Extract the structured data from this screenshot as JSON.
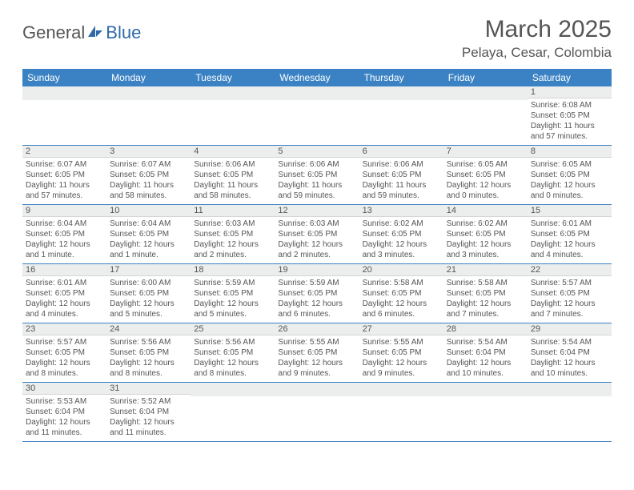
{
  "header": {
    "logo_text_1": "General",
    "logo_text_2": "Blue",
    "title": "March 2025",
    "subtitle": "Pelaya, Cesar, Colombia"
  },
  "colors": {
    "header_bg": "#3b82c4",
    "header_text": "#ffffff",
    "daynum_bg": "#eceded",
    "text": "#555555",
    "logo_triangle": "#2f6aa8"
  },
  "weekdays": [
    "Sunday",
    "Monday",
    "Tuesday",
    "Wednesday",
    "Thursday",
    "Friday",
    "Saturday"
  ],
  "weeks": [
    [
      null,
      null,
      null,
      null,
      null,
      null,
      {
        "num": "1",
        "sunrise": "Sunrise: 6:08 AM",
        "sunset": "Sunset: 6:05 PM",
        "daylight": "Daylight: 11 hours and 57 minutes."
      }
    ],
    [
      {
        "num": "2",
        "sunrise": "Sunrise: 6:07 AM",
        "sunset": "Sunset: 6:05 PM",
        "daylight": "Daylight: 11 hours and 57 minutes."
      },
      {
        "num": "3",
        "sunrise": "Sunrise: 6:07 AM",
        "sunset": "Sunset: 6:05 PM",
        "daylight": "Daylight: 11 hours and 58 minutes."
      },
      {
        "num": "4",
        "sunrise": "Sunrise: 6:06 AM",
        "sunset": "Sunset: 6:05 PM",
        "daylight": "Daylight: 11 hours and 58 minutes."
      },
      {
        "num": "5",
        "sunrise": "Sunrise: 6:06 AM",
        "sunset": "Sunset: 6:05 PM",
        "daylight": "Daylight: 11 hours and 59 minutes."
      },
      {
        "num": "6",
        "sunrise": "Sunrise: 6:06 AM",
        "sunset": "Sunset: 6:05 PM",
        "daylight": "Daylight: 11 hours and 59 minutes."
      },
      {
        "num": "7",
        "sunrise": "Sunrise: 6:05 AM",
        "sunset": "Sunset: 6:05 PM",
        "daylight": "Daylight: 12 hours and 0 minutes."
      },
      {
        "num": "8",
        "sunrise": "Sunrise: 6:05 AM",
        "sunset": "Sunset: 6:05 PM",
        "daylight": "Daylight: 12 hours and 0 minutes."
      }
    ],
    [
      {
        "num": "9",
        "sunrise": "Sunrise: 6:04 AM",
        "sunset": "Sunset: 6:05 PM",
        "daylight": "Daylight: 12 hours and 1 minute."
      },
      {
        "num": "10",
        "sunrise": "Sunrise: 6:04 AM",
        "sunset": "Sunset: 6:05 PM",
        "daylight": "Daylight: 12 hours and 1 minute."
      },
      {
        "num": "11",
        "sunrise": "Sunrise: 6:03 AM",
        "sunset": "Sunset: 6:05 PM",
        "daylight": "Daylight: 12 hours and 2 minutes."
      },
      {
        "num": "12",
        "sunrise": "Sunrise: 6:03 AM",
        "sunset": "Sunset: 6:05 PM",
        "daylight": "Daylight: 12 hours and 2 minutes."
      },
      {
        "num": "13",
        "sunrise": "Sunrise: 6:02 AM",
        "sunset": "Sunset: 6:05 PM",
        "daylight": "Daylight: 12 hours and 3 minutes."
      },
      {
        "num": "14",
        "sunrise": "Sunrise: 6:02 AM",
        "sunset": "Sunset: 6:05 PM",
        "daylight": "Daylight: 12 hours and 3 minutes."
      },
      {
        "num": "15",
        "sunrise": "Sunrise: 6:01 AM",
        "sunset": "Sunset: 6:05 PM",
        "daylight": "Daylight: 12 hours and 4 minutes."
      }
    ],
    [
      {
        "num": "16",
        "sunrise": "Sunrise: 6:01 AM",
        "sunset": "Sunset: 6:05 PM",
        "daylight": "Daylight: 12 hours and 4 minutes."
      },
      {
        "num": "17",
        "sunrise": "Sunrise: 6:00 AM",
        "sunset": "Sunset: 6:05 PM",
        "daylight": "Daylight: 12 hours and 5 minutes."
      },
      {
        "num": "18",
        "sunrise": "Sunrise: 5:59 AM",
        "sunset": "Sunset: 6:05 PM",
        "daylight": "Daylight: 12 hours and 5 minutes."
      },
      {
        "num": "19",
        "sunrise": "Sunrise: 5:59 AM",
        "sunset": "Sunset: 6:05 PM",
        "daylight": "Daylight: 12 hours and 6 minutes."
      },
      {
        "num": "20",
        "sunrise": "Sunrise: 5:58 AM",
        "sunset": "Sunset: 6:05 PM",
        "daylight": "Daylight: 12 hours and 6 minutes."
      },
      {
        "num": "21",
        "sunrise": "Sunrise: 5:58 AM",
        "sunset": "Sunset: 6:05 PM",
        "daylight": "Daylight: 12 hours and 7 minutes."
      },
      {
        "num": "22",
        "sunrise": "Sunrise: 5:57 AM",
        "sunset": "Sunset: 6:05 PM",
        "daylight": "Daylight: 12 hours and 7 minutes."
      }
    ],
    [
      {
        "num": "23",
        "sunrise": "Sunrise: 5:57 AM",
        "sunset": "Sunset: 6:05 PM",
        "daylight": "Daylight: 12 hours and 8 minutes."
      },
      {
        "num": "24",
        "sunrise": "Sunrise: 5:56 AM",
        "sunset": "Sunset: 6:05 PM",
        "daylight": "Daylight: 12 hours and 8 minutes."
      },
      {
        "num": "25",
        "sunrise": "Sunrise: 5:56 AM",
        "sunset": "Sunset: 6:05 PM",
        "daylight": "Daylight: 12 hours and 8 minutes."
      },
      {
        "num": "26",
        "sunrise": "Sunrise: 5:55 AM",
        "sunset": "Sunset: 6:05 PM",
        "daylight": "Daylight: 12 hours and 9 minutes."
      },
      {
        "num": "27",
        "sunrise": "Sunrise: 5:55 AM",
        "sunset": "Sunset: 6:05 PM",
        "daylight": "Daylight: 12 hours and 9 minutes."
      },
      {
        "num": "28",
        "sunrise": "Sunrise: 5:54 AM",
        "sunset": "Sunset: 6:04 PM",
        "daylight": "Daylight: 12 hours and 10 minutes."
      },
      {
        "num": "29",
        "sunrise": "Sunrise: 5:54 AM",
        "sunset": "Sunset: 6:04 PM",
        "daylight": "Daylight: 12 hours and 10 minutes."
      }
    ],
    [
      {
        "num": "30",
        "sunrise": "Sunrise: 5:53 AM",
        "sunset": "Sunset: 6:04 PM",
        "daylight": "Daylight: 12 hours and 11 minutes."
      },
      {
        "num": "31",
        "sunrise": "Sunrise: 5:52 AM",
        "sunset": "Sunset: 6:04 PM",
        "daylight": "Daylight: 12 hours and 11 minutes."
      },
      null,
      null,
      null,
      null,
      null
    ]
  ]
}
